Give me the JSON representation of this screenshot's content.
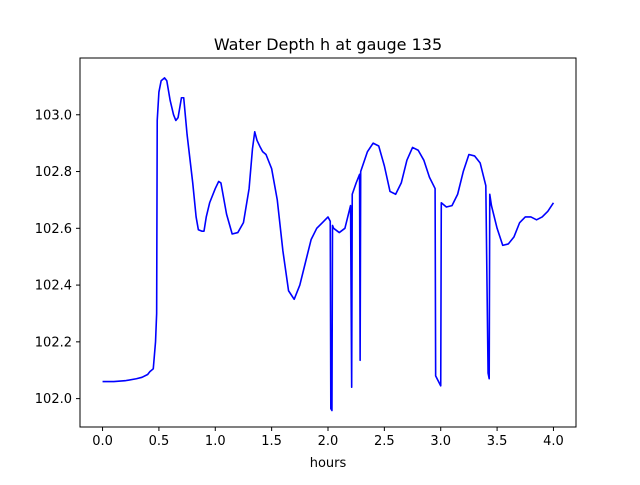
{
  "chart_data": {
    "type": "line",
    "title": "Water Depth h at gauge 135",
    "xlabel": "hours",
    "ylabel": "",
    "xlim": [
      -0.2,
      4.2
    ],
    "ylim": [
      101.9,
      103.2
    ],
    "xticks": [
      "0.0",
      "0.5",
      "1.0",
      "1.5",
      "2.0",
      "2.5",
      "3.0",
      "3.5",
      "4.0"
    ],
    "yticks": [
      "102.0",
      "102.2",
      "102.4",
      "102.6",
      "102.8",
      "103.0"
    ],
    "grid": false,
    "legend": "none",
    "series": [
      {
        "name": "",
        "color": "#0000ff",
        "points": [
          [
            0.0,
            102.06
          ],
          [
            0.1,
            102.06
          ],
          [
            0.2,
            102.063
          ],
          [
            0.3,
            102.07
          ],
          [
            0.35,
            102.075
          ],
          [
            0.4,
            102.085
          ],
          [
            0.42,
            102.095
          ],
          [
            0.45,
            102.105
          ],
          [
            0.47,
            102.2
          ],
          [
            0.48,
            102.3
          ],
          [
            0.485,
            102.98
          ],
          [
            0.5,
            103.08
          ],
          [
            0.52,
            103.12
          ],
          [
            0.55,
            103.13
          ],
          [
            0.57,
            103.12
          ],
          [
            0.6,
            103.05
          ],
          [
            0.63,
            103.0
          ],
          [
            0.65,
            102.98
          ],
          [
            0.67,
            102.99
          ],
          [
            0.7,
            103.06
          ],
          [
            0.72,
            103.06
          ],
          [
            0.75,
            102.93
          ],
          [
            0.8,
            102.76
          ],
          [
            0.83,
            102.64
          ],
          [
            0.85,
            102.595
          ],
          [
            0.88,
            102.59
          ],
          [
            0.9,
            102.59
          ],
          [
            0.92,
            102.64
          ],
          [
            0.95,
            102.69
          ],
          [
            1.0,
            102.74
          ],
          [
            1.03,
            102.765
          ],
          [
            1.05,
            102.76
          ],
          [
            1.1,
            102.65
          ],
          [
            1.15,
            102.58
          ],
          [
            1.2,
            102.585
          ],
          [
            1.25,
            102.62
          ],
          [
            1.3,
            102.74
          ],
          [
            1.33,
            102.88
          ],
          [
            1.35,
            102.94
          ],
          [
            1.37,
            102.91
          ],
          [
            1.4,
            102.885
          ],
          [
            1.42,
            102.87
          ],
          [
            1.45,
            102.86
          ],
          [
            1.5,
            102.81
          ],
          [
            1.55,
            102.7
          ],
          [
            1.6,
            102.52
          ],
          [
            1.65,
            102.38
          ],
          [
            1.7,
            102.35
          ],
          [
            1.75,
            102.4
          ],
          [
            1.8,
            102.48
          ],
          [
            1.85,
            102.56
          ],
          [
            1.9,
            102.6
          ],
          [
            1.95,
            102.62
          ],
          [
            2.0,
            102.64
          ],
          [
            2.02,
            102.625
          ],
          [
            2.025,
            101.965
          ],
          [
            2.035,
            101.958
          ],
          [
            2.04,
            102.61
          ],
          [
            2.05,
            102.6
          ],
          [
            2.1,
            102.585
          ],
          [
            2.15,
            102.6
          ],
          [
            2.2,
            102.68
          ],
          [
            2.21,
            102.04
          ],
          [
            2.215,
            102.72
          ],
          [
            2.25,
            102.76
          ],
          [
            2.28,
            102.79
          ],
          [
            2.285,
            102.135
          ],
          [
            2.29,
            102.8
          ],
          [
            2.35,
            102.87
          ],
          [
            2.4,
            102.9
          ],
          [
            2.45,
            102.89
          ],
          [
            2.5,
            102.82
          ],
          [
            2.55,
            102.73
          ],
          [
            2.6,
            102.72
          ],
          [
            2.65,
            102.76
          ],
          [
            2.7,
            102.84
          ],
          [
            2.75,
            102.885
          ],
          [
            2.8,
            102.875
          ],
          [
            2.85,
            102.84
          ],
          [
            2.9,
            102.78
          ],
          [
            2.95,
            102.74
          ],
          [
            2.955,
            102.08
          ],
          [
            3.0,
            102.045
          ],
          [
            3.005,
            102.69
          ],
          [
            3.05,
            102.675
          ],
          [
            3.1,
            102.68
          ],
          [
            3.15,
            102.72
          ],
          [
            3.2,
            102.8
          ],
          [
            3.25,
            102.86
          ],
          [
            3.3,
            102.855
          ],
          [
            3.35,
            102.83
          ],
          [
            3.4,
            102.75
          ],
          [
            3.42,
            102.09
          ],
          [
            3.43,
            102.07
          ],
          [
            3.435,
            102.72
          ],
          [
            3.45,
            102.68
          ],
          [
            3.5,
            102.6
          ],
          [
            3.55,
            102.54
          ],
          [
            3.6,
            102.545
          ],
          [
            3.65,
            102.57
          ],
          [
            3.7,
            102.62
          ],
          [
            3.75,
            102.64
          ],
          [
            3.8,
            102.64
          ],
          [
            3.85,
            102.63
          ],
          [
            3.9,
            102.64
          ],
          [
            3.95,
            102.66
          ],
          [
            4.0,
            102.69
          ]
        ]
      }
    ]
  }
}
